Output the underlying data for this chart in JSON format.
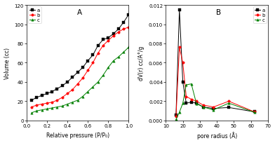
{
  "panel_A": {
    "title": "A",
    "xlabel": "Relative pressure (P/P₀)",
    "ylabel": "Volume (cc)",
    "xlim": [
      0.0,
      1.0
    ],
    "ylim": [
      0,
      120
    ],
    "yticks": [
      0,
      20,
      40,
      60,
      80,
      100,
      120
    ],
    "xticks": [
      0.0,
      0.2,
      0.4,
      0.6,
      0.8,
      1.0
    ],
    "series": {
      "a": {
        "color": "black",
        "marker": "s",
        "x": [
          0.05,
          0.1,
          0.15,
          0.2,
          0.25,
          0.3,
          0.35,
          0.4,
          0.45,
          0.5,
          0.55,
          0.6,
          0.65,
          0.7,
          0.75,
          0.8,
          0.85,
          0.9,
          0.95,
          1.0
        ],
        "y": [
          21,
          24,
          26,
          28,
          30,
          33,
          36,
          40,
          45,
          50,
          55,
          62,
          68,
          78,
          84,
          86,
          90,
          95,
          102,
          110
        ]
      },
      "b": {
        "color": "red",
        "marker": "o",
        "x": [
          0.05,
          0.1,
          0.15,
          0.2,
          0.25,
          0.3,
          0.35,
          0.4,
          0.45,
          0.5,
          0.55,
          0.6,
          0.65,
          0.7,
          0.75,
          0.8,
          0.85,
          0.9,
          0.95,
          1.0
        ],
        "y": [
          14,
          16,
          17,
          18,
          19,
          21,
          24,
          28,
          32,
          38,
          44,
          52,
          60,
          70,
          78,
          83,
          88,
          92,
          95,
          97
        ]
      },
      "c": {
        "color": "green",
        "marker": "^",
        "x": [
          0.05,
          0.1,
          0.15,
          0.2,
          0.25,
          0.3,
          0.35,
          0.4,
          0.45,
          0.5,
          0.55,
          0.6,
          0.65,
          0.7,
          0.75,
          0.8,
          0.85,
          0.9,
          0.95,
          1.0
        ],
        "y": [
          8,
          10,
          11,
          12,
          13,
          14,
          15,
          17,
          19,
          21,
          25,
          30,
          35,
          40,
          47,
          55,
          62,
          66,
          71,
          76
        ]
      }
    }
  },
  "panel_B": {
    "title": "B",
    "xlabel": "pore radius (Å)",
    "ylabel": "dV(r) cc/A°/g",
    "xlim": [
      10,
      70
    ],
    "ylim": [
      0.0,
      0.012
    ],
    "yticks": [
      0.0,
      0.002,
      0.004,
      0.006,
      0.008,
      0.01,
      0.012
    ],
    "xticks": [
      10,
      20,
      30,
      40,
      50,
      60,
      70
    ],
    "series": {
      "a": {
        "color": "black",
        "marker": "s",
        "x": [
          16,
          18,
          20,
          22,
          25,
          28,
          32,
          38,
          47,
          62
        ],
        "y": [
          0.0006,
          0.0115,
          0.004,
          0.0018,
          0.0019,
          0.0018,
          0.0014,
          0.00125,
          0.00135,
          0.0009
        ]
      },
      "b": {
        "color": "red",
        "marker": "o",
        "x": [
          16,
          18,
          20,
          22,
          25,
          28,
          32,
          38,
          47,
          62
        ],
        "y": [
          0.0004,
          0.0076,
          0.006,
          0.0025,
          0.0022,
          0.002,
          0.0016,
          0.0014,
          0.002,
          0.0009
        ]
      },
      "c": {
        "color": "green",
        "marker": "^",
        "x": [
          16,
          18,
          20,
          22,
          25,
          28,
          32,
          38,
          47,
          62
        ],
        "y": [
          0.0001,
          0.00085,
          0.0018,
          0.0037,
          0.0038,
          0.00175,
          0.0014,
          0.0011,
          0.0018,
          0.00085
        ]
      }
    }
  },
  "bg_color": "white",
  "markersize": 2.5,
  "linewidth": 0.7,
  "fontsize_label": 5.5,
  "fontsize_tick": 5.0,
  "fontsize_legend": 5.0,
  "fontsize_title": 7.5
}
